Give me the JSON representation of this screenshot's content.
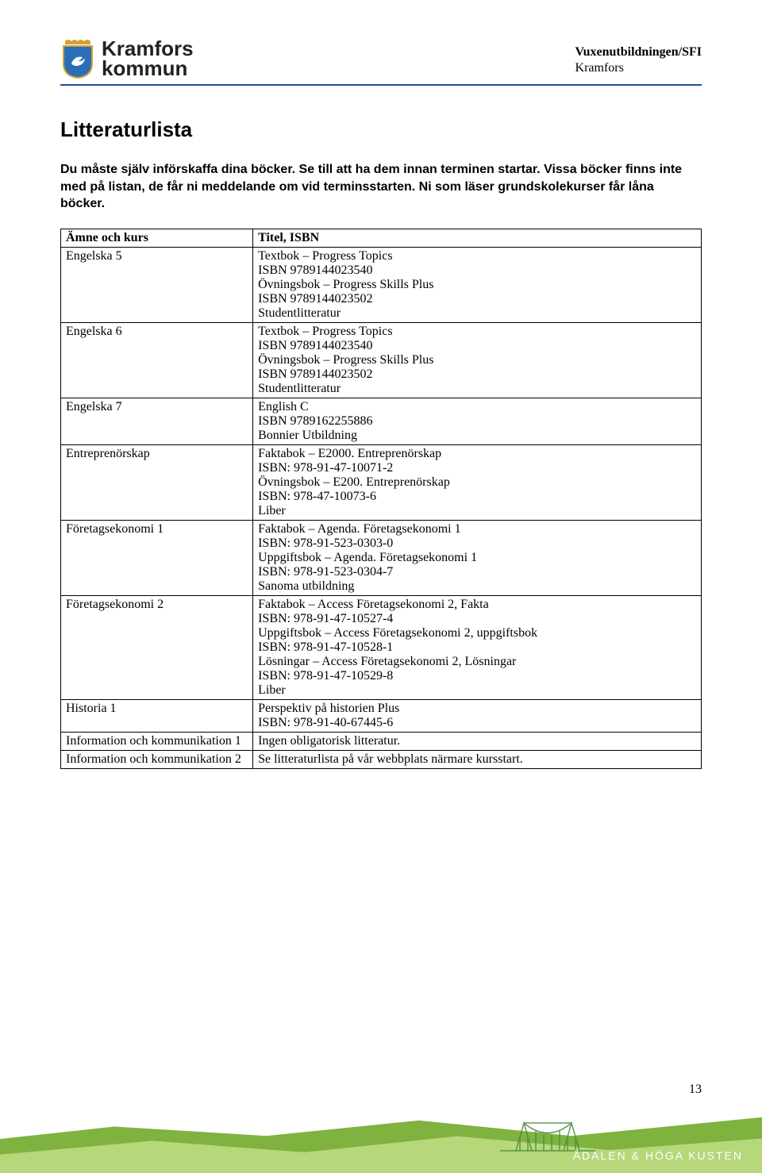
{
  "header": {
    "logo_line1": "Kramfors",
    "logo_line2": "kommun",
    "right_bold": "Vuxenutbildningen/SFI",
    "right_line2": "Kramfors",
    "crest_colors": {
      "shield": "#2a6fb5",
      "border": "#d4a037",
      "crown": "#d4a037",
      "bird": "#ffffff"
    },
    "rule_color": "#1f4e9c"
  },
  "title": "Litteraturlista",
  "intro": "Du måste själv införskaffa dina böcker. Se till att ha dem innan terminen startar. Vissa böcker finns inte med på listan, de får ni meddelande om vid terminsstarten. Ni som läser grundskolekurser får låna böcker.",
  "table": {
    "header_subject": "Ämne och kurs",
    "header_info": "Titel, ISBN",
    "rows": [
      {
        "subject": "Engelska 5",
        "lines": [
          "Textbok – Progress Topics",
          "ISBN 9789144023540",
          "Övningsbok – Progress Skills Plus",
          "ISBN 9789144023502",
          "Studentlitteratur"
        ]
      },
      {
        "subject": "Engelska 6",
        "lines": [
          "Textbok – Progress Topics",
          "ISBN 9789144023540",
          "Övningsbok – Progress Skills Plus",
          "ISBN 9789144023502",
          "Studentlitteratur"
        ]
      },
      {
        "subject": "Engelska 7",
        "lines": [
          "English C",
          "ISBN 9789162255886",
          "Bonnier Utbildning"
        ]
      },
      {
        "subject": "Entreprenörskap",
        "lines": [
          "Faktabok – E2000. Entreprenörskap",
          "ISBN: 978-91-47-10071-2",
          "Övningsbok – E200. Entreprenörskap",
          "ISBN: 978-47-10073-6",
          "Liber"
        ]
      },
      {
        "subject": "Företagsekonomi 1",
        "lines": [
          "Faktabok – Agenda. Företagsekonomi 1",
          "ISBN: 978-91-523-0303-0",
          "Uppgiftsbok – Agenda. Företagsekonomi 1",
          "ISBN: 978-91-523-0304-7",
          "Sanoma utbildning"
        ]
      },
      {
        "subject": "Företagsekonomi 2",
        "lines": [
          "Faktabok – Access Företagsekonomi 2, Fakta",
          "ISBN: 978-91-47-10527-4",
          "Uppgiftsbok – Access Företagsekonomi 2, uppgiftsbok",
          "ISBN: 978-91-47-10528-1",
          "Lösningar – Access Företagsekonomi 2, Lösningar",
          "ISBN: 978-91-47-10529-8",
          "Liber"
        ]
      },
      {
        "subject": "Historia 1",
        "lines": [
          "Perspektiv på historien Plus",
          "ISBN: 978-91-40-67445-6"
        ]
      },
      {
        "subject": "Information och kommunikation 1",
        "lines": [
          "Ingen obligatorisk litteratur."
        ]
      },
      {
        "subject": "Information och kommunikation 2",
        "lines": [
          "Se litteraturlista på vår webbplats närmare kursstart."
        ]
      }
    ]
  },
  "footer": {
    "page_number": "13",
    "brand": "ÅDALEN & HÖGA KUSTEN",
    "wave_back_color": "#7fb23f",
    "wave_front_color": "#b6d77a",
    "bridge_color": "#4a8a3a"
  }
}
